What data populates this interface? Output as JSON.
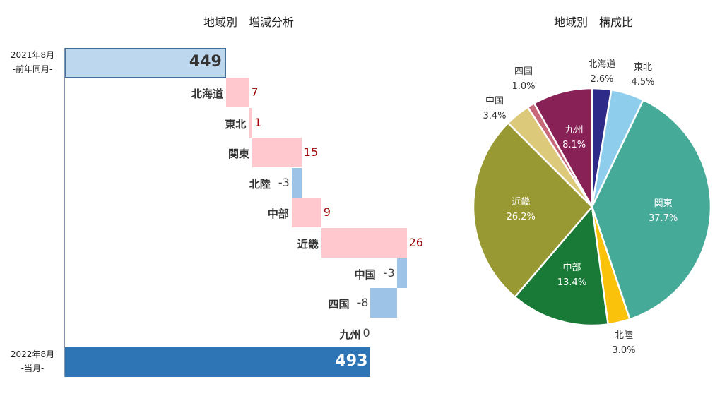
{
  "chart_data": [
    {
      "type": "bar",
      "subtype": "waterfall",
      "title": "地域別　増減分析",
      "orientation": "horizontal",
      "axis_min": 400,
      "start": {
        "label_line1": "2021年8月",
        "label_line2": "-前年同月-",
        "value": 449
      },
      "end": {
        "label_line1": "2022年8月",
        "label_line2": "-当月-",
        "value": 493
      },
      "categories": [
        "北海道",
        "東北",
        "関東",
        "北陸",
        "中部",
        "近畿",
        "中国",
        "四国",
        "九州"
      ],
      "values": [
        7,
        1,
        15,
        -3,
        9,
        26,
        -3,
        -8,
        0
      ],
      "colors": {
        "start": "#bdd7ee",
        "end": "#2e75b6",
        "increase": "#ffc7ce",
        "decrease": "#9dc3e6",
        "increase_text": "#9c0006"
      }
    },
    {
      "type": "pie",
      "title": "地域別　構成比",
      "categories": [
        "北海道",
        "東北",
        "関東",
        "北陸",
        "中部",
        "近畿",
        "中国",
        "四国",
        "九州"
      ],
      "values": [
        2.6,
        4.5,
        37.7,
        3.0,
        13.4,
        26.2,
        3.4,
        1.0,
        8.1
      ],
      "labels": [
        "2.6%",
        "4.5%",
        "37.7%",
        "3.0%",
        "13.4%",
        "26.2%",
        "3.4%",
        "1.0%",
        "8.1%"
      ],
      "colors": [
        "#2e2a87",
        "#8ecdec",
        "#45aa98",
        "#fbc20b",
        "#187a36",
        "#999934",
        "#dcc97a",
        "#c8697a",
        "#882155"
      ],
      "start_angle": 0,
      "direction": "clockwise"
    }
  ],
  "waterfall": {
    "title": "地域別　増減分析",
    "start_label_1": "2021年8月",
    "start_label_2": "-前年同月-",
    "start_value": "449",
    "end_label_1": "2022年8月",
    "end_label_2": "-当月-",
    "end_value": "493",
    "items": [
      {
        "name": "北海道",
        "value": "7"
      },
      {
        "name": "東北",
        "value": "1"
      },
      {
        "name": "関東",
        "value": "15"
      },
      {
        "name": "北陸",
        "value": "-3"
      },
      {
        "name": "中部",
        "value": "9"
      },
      {
        "name": "近畿",
        "value": "26"
      },
      {
        "name": "中国",
        "value": "-3"
      },
      {
        "name": "四国",
        "value": "-8"
      },
      {
        "name": "九州",
        "value": "0"
      }
    ]
  },
  "pie": {
    "title": "地域別　構成比",
    "items": [
      {
        "name": "北海道",
        "pct": "2.6%"
      },
      {
        "name": "東北",
        "pct": "4.5%"
      },
      {
        "name": "関東",
        "pct": "37.7%"
      },
      {
        "name": "北陸",
        "pct": "3.0%"
      },
      {
        "name": "中部",
        "pct": "13.4%"
      },
      {
        "name": "近畿",
        "pct": "26.2%"
      },
      {
        "name": "中国",
        "pct": "3.4%"
      },
      {
        "name": "四国",
        "pct": "1.0%"
      },
      {
        "name": "九州",
        "pct": "8.1%"
      }
    ]
  }
}
